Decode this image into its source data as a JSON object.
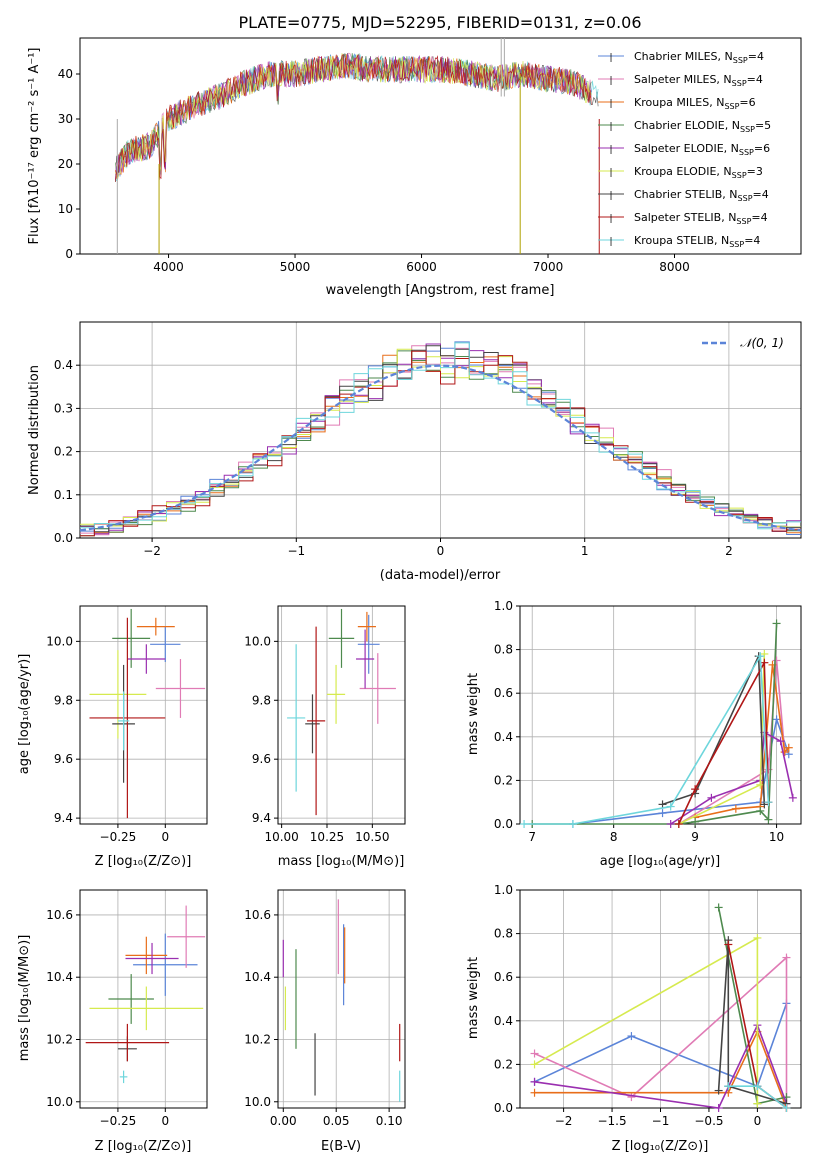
{
  "title": "PLATE=0775, MJD=52295, FIBERID=0131, z=0.06",
  "colors": {
    "Chabrier MILES": "#5b84d8",
    "Salpeter MILES": "#e07bb5",
    "Kroupa MILES": "#e86e1a",
    "Chabrier ELODIE": "#4e8a4e",
    "Salpeter ELODIE": "#9a2fb0",
    "Kroupa ELODIE": "#d6ea4f",
    "Chabrier STELIB": "#444444",
    "Salpeter STELIB": "#b01717",
    "Kroupa STELIB": "#6ed6dc"
  },
  "legend_spectrum": {
    "placement": "upper right",
    "entries": [
      {
        "label": "Chabrier MILES, N",
        "sub": "SSP",
        "suffix": "=4"
      },
      {
        "label": "Salpeter MILES, N",
        "sub": "SSP",
        "suffix": "=4"
      },
      {
        "label": "Kroupa MILES, N",
        "sub": "SSP",
        "suffix": "=6"
      },
      {
        "label": "Chabrier ELODIE, N",
        "sub": "SSP",
        "suffix": "=5"
      },
      {
        "label": "Salpeter ELODIE, N",
        "sub": "SSP",
        "suffix": "=6"
      },
      {
        "label": "Kroupa ELODIE, N",
        "sub": "SSP",
        "suffix": "=3"
      },
      {
        "label": "Chabrier STELIB, N",
        "sub": "SSP",
        "suffix": "=4"
      },
      {
        "label": "Salpeter STELIB, N",
        "sub": "SSP",
        "suffix": "=4"
      },
      {
        "label": "Kroupa STELIB, N",
        "sub": "SSP",
        "suffix": "=4"
      }
    ]
  },
  "legend_hist": {
    "label": "𝒩(0, 1)",
    "placement": "upper right"
  },
  "chart_data": [
    {
      "type": "line",
      "xlabel": "wavelength [Angstrom, rest frame]",
      "ylabel": "Flux [fλ10⁻¹⁷ erg cm⁻² s⁻¹ A⁻¹]",
      "xlim": [
        3300,
        9000
      ],
      "ylim": [
        0,
        48
      ],
      "xticks": [
        4000,
        5000,
        6000,
        7000,
        8000
      ],
      "yticks": [
        0,
        10,
        20,
        30,
        40
      ],
      "continuum": {
        "x": [
          3580,
          3700,
          3850,
          4000,
          4200,
          4400,
          4600,
          4800,
          5000,
          5200,
          5400,
          5600,
          5800,
          6000,
          6200,
          6400,
          6600,
          6800,
          7000,
          7200,
          7400
        ],
        "y": [
          19,
          23,
          24,
          30,
          33,
          35,
          38,
          40,
          40,
          41,
          42,
          41,
          41,
          41,
          41,
          40,
          39,
          40,
          39,
          38,
          35
        ]
      }
    },
    {
      "type": "bar",
      "xlabel": "(data-model)/error",
      "ylabel": "Normed distribution",
      "xlim": [
        -2.5,
        2.5
      ],
      "ylim": [
        0,
        0.5
      ],
      "xticks": [
        -2,
        -1,
        0,
        1,
        2
      ],
      "yticks": [
        0.0,
        0.1,
        0.2,
        0.3,
        0.4
      ],
      "grid": true
    },
    {
      "type": "scatter",
      "xlabel": "Z [log₁₀(Z/Z⊙)]",
      "ylabel": "age  [log₁₀(age/yr)]",
      "xlim": [
        -0.45,
        0.22
      ],
      "ylim": [
        9.38,
        10.12
      ],
      "xticks": [
        -0.25,
        0.0
      ],
      "yticks": [
        9.4,
        9.6,
        9.8,
        10.0
      ],
      "points": [
        {
          "series": "Chabrier MILES",
          "x": 0.0,
          "y": 9.99,
          "xerr": 0.08,
          "yerr": 0.06
        },
        {
          "series": "Salpeter MILES",
          "x": 0.08,
          "y": 9.84,
          "xerr": 0.13,
          "yerr": 0.1
        },
        {
          "series": "Kroupa MILES",
          "x": -0.05,
          "y": 10.05,
          "xerr": 0.1,
          "yerr": 0.03
        },
        {
          "series": "Chabrier ELODIE",
          "x": -0.18,
          "y": 10.01,
          "xerr": 0.1,
          "yerr": 0.1
        },
        {
          "series": "Salpeter ELODIE",
          "x": -0.1,
          "y": 9.94,
          "xerr": 0.1,
          "yerr": 0.05
        },
        {
          "series": "Kroupa ELODIE",
          "x": -0.25,
          "y": 9.82,
          "xerr": 0.15,
          "yerr": 0.15
        },
        {
          "series": "Chabrier STELIB",
          "x": -0.22,
          "y": 9.72,
          "xerr": 0.06,
          "yerr": 0.2
        },
        {
          "series": "Salpeter STELIB",
          "x": -0.2,
          "y": 9.74,
          "xerr": 0.2,
          "yerr": 0.34
        },
        {
          "series": "Kroupa STELIB",
          "x": -0.22,
          "y": 9.73,
          "xerr": 0.03,
          "yerr": 0.1
        }
      ]
    },
    {
      "type": "scatter",
      "xlabel": "mass [log₁₀(M/M⊙)]",
      "ylabel": "",
      "xlim": [
        9.98,
        10.68
      ],
      "ylim": [
        9.38,
        10.12
      ],
      "xticks": [
        10.0,
        10.25,
        10.5
      ],
      "yticks": [
        9.4,
        9.6,
        9.8,
        10.0
      ],
      "points": [
        {
          "series": "Chabrier MILES",
          "x": 10.48,
          "y": 9.99,
          "xerr": 0.06,
          "yerr": 0.1
        },
        {
          "series": "Salpeter MILES",
          "x": 10.53,
          "y": 9.84,
          "xerr": 0.1,
          "yerr": 0.12
        },
        {
          "series": "Kroupa MILES",
          "x": 10.47,
          "y": 10.05,
          "xerr": 0.05,
          "yerr": 0.05
        },
        {
          "series": "Chabrier ELODIE",
          "x": 10.33,
          "y": 10.01,
          "xerr": 0.07,
          "yerr": 0.1
        },
        {
          "series": "Salpeter ELODIE",
          "x": 10.46,
          "y": 9.94,
          "xerr": 0.05,
          "yerr": 0.1
        },
        {
          "series": "Kroupa ELODIE",
          "x": 10.3,
          "y": 9.82,
          "xerr": 0.05,
          "yerr": 0.1
        },
        {
          "series": "Chabrier STELIB",
          "x": 10.17,
          "y": 9.72,
          "xerr": 0.04,
          "yerr": 0.1
        },
        {
          "series": "Salpeter STELIB",
          "x": 10.19,
          "y": 9.73,
          "xerr": 0.05,
          "yerr": 0.32
        },
        {
          "series": "Kroupa STELIB",
          "x": 10.08,
          "y": 9.74,
          "xerr": 0.05,
          "yerr": 0.25
        }
      ]
    },
    {
      "type": "line",
      "xlabel": "age  [log₁₀(age/yr)]",
      "ylabel": "mass weight",
      "xlim": [
        6.85,
        10.3
      ],
      "ylim": [
        0,
        1.0
      ],
      "xticks": [
        7,
        8,
        9,
        10
      ],
      "yticks": [
        0.0,
        0.2,
        0.4,
        0.6,
        0.8,
        1.0
      ],
      "series": [
        {
          "name": "Chabrier MILES",
          "x": [
            7.5,
            8.6,
            9.8,
            10.0,
            10.15
          ],
          "y": [
            0.0,
            0.05,
            0.1,
            0.48,
            0.32
          ]
        },
        {
          "name": "Salpeter MILES",
          "x": [
            8.8,
            9.9,
            10.0,
            10.1
          ],
          "y": [
            0.0,
            0.25,
            0.75,
            0.33
          ]
        },
        {
          "name": "Kroupa MILES",
          "x": [
            9.0,
            9.5,
            9.8,
            9.95,
            10.1,
            10.15
          ],
          "y": [
            0.03,
            0.07,
            0.08,
            0.73,
            0.33,
            0.35
          ]
        },
        {
          "name": "Chabrier ELODIE",
          "x": [
            7.0,
            8.8,
            9.0,
            9.8,
            9.9,
            10.0
          ],
          "y": [
            0.0,
            0.0,
            0.01,
            0.06,
            0.02,
            0.92
          ]
        },
        {
          "name": "Salpeter ELODIE",
          "x": [
            8.7,
            9.2,
            9.8,
            9.85,
            10.05,
            10.2
          ],
          "y": [
            0.0,
            0.12,
            0.2,
            0.42,
            0.38,
            0.12
          ]
        },
        {
          "name": "Kroupa ELODIE",
          "x": [
            8.8,
            9.8,
            9.85
          ],
          "y": [
            0.0,
            0.18,
            0.78
          ]
        },
        {
          "name": "Chabrier STELIB",
          "x": [
            8.6,
            9.0,
            9.78,
            9.85
          ],
          "y": [
            0.09,
            0.14,
            0.77,
            0.09
          ]
        },
        {
          "name": "Salpeter STELIB",
          "x": [
            8.8,
            9.0,
            9.85,
            9.9
          ],
          "y": [
            0.0,
            0.16,
            0.74,
            0.1
          ]
        },
        {
          "name": "Kroupa STELIB",
          "x": [
            6.9,
            7.5,
            8.7,
            9.8,
            9.9
          ],
          "y": [
            0.0,
            0.0,
            0.08,
            0.77,
            0.1
          ]
        }
      ]
    },
    {
      "type": "scatter",
      "xlabel": "Z [log₁₀(Z/Z⊙)]",
      "ylabel": "mass [log₁₀(M/M⊙)]",
      "xlim": [
        -0.45,
        0.22
      ],
      "ylim": [
        9.98,
        10.68
      ],
      "xticks": [
        -0.25,
        0.0
      ],
      "yticks": [
        10.0,
        10.2,
        10.4,
        10.6
      ],
      "points": [
        {
          "series": "Chabrier MILES",
          "x": 0.0,
          "y": 10.44,
          "xerr": 0.17,
          "yerr": 0.1
        },
        {
          "series": "Salpeter MILES",
          "x": 0.11,
          "y": 10.53,
          "xerr": 0.1,
          "yerr": 0.1
        },
        {
          "series": "Kroupa MILES",
          "x": -0.1,
          "y": 10.47,
          "xerr": 0.11,
          "yerr": 0.06
        },
        {
          "series": "Chabrier ELODIE",
          "x": -0.18,
          "y": 10.33,
          "xerr": 0.12,
          "yerr": 0.08
        },
        {
          "series": "Salpeter ELODIE",
          "x": -0.07,
          "y": 10.46,
          "xerr": 0.14,
          "yerr": 0.05
        },
        {
          "series": "Kroupa ELODIE",
          "x": -0.1,
          "y": 10.3,
          "xerr": 0.3,
          "yerr": 0.07
        },
        {
          "series": "Chabrier STELIB",
          "x": -0.2,
          "y": 10.17,
          "xerr": 0.05,
          "yerr": 0.04
        },
        {
          "series": "Salpeter STELIB",
          "x": -0.2,
          "y": 10.19,
          "xerr": 0.22,
          "yerr": 0.06
        },
        {
          "series": "Kroupa STELIB",
          "x": -0.22,
          "y": 10.08,
          "xerr": 0.02,
          "yerr": 0.02
        }
      ]
    },
    {
      "type": "scatter",
      "xlabel": "E(B-V)",
      "ylabel": "",
      "xlim": [
        -0.005,
        0.115
      ],
      "ylim": [
        9.98,
        10.68
      ],
      "xticks": [
        0.0,
        0.05,
        0.1
      ],
      "yticks": [
        10.0,
        10.2,
        10.4,
        10.6
      ],
      "points": [
        {
          "series": "Chabrier MILES",
          "x": 0.057,
          "y": 10.44,
          "xerr": 0,
          "yerr": 0.13
        },
        {
          "series": "Salpeter MILES",
          "x": 0.052,
          "y": 10.53,
          "xerr": 0,
          "yerr": 0.12
        },
        {
          "series": "Kroupa MILES",
          "x": 0.058,
          "y": 10.47,
          "xerr": 0,
          "yerr": 0.09
        },
        {
          "series": "Chabrier ELODIE",
          "x": 0.012,
          "y": 10.33,
          "xerr": 0,
          "yerr": 0.16
        },
        {
          "series": "Salpeter ELODIE",
          "x": 0.0,
          "y": 10.46,
          "xerr": 0,
          "yerr": 0.06
        },
        {
          "series": "Kroupa ELODIE",
          "x": 0.002,
          "y": 10.3,
          "xerr": 0,
          "yerr": 0.07
        },
        {
          "series": "Chabrier STELIB",
          "x": 0.03,
          "y": 10.12,
          "xerr": 0,
          "yerr": 0.1
        },
        {
          "series": "Salpeter STELIB",
          "x": 0.11,
          "y": 10.19,
          "xerr": 0,
          "yerr": 0.06
        },
        {
          "series": "Kroupa STELIB",
          "x": 0.11,
          "y": 10.05,
          "xerr": 0,
          "yerr": 0.05
        }
      ]
    },
    {
      "type": "line",
      "xlabel": "Z [log₁₀(Z/Z⊙)]",
      "ylabel": "mass weight",
      "xlim": [
        -2.45,
        0.45
      ],
      "ylim": [
        0,
        1.0
      ],
      "xticks": [
        -2.0,
        -1.5,
        -1.0,
        -0.5,
        0.0
      ],
      "yticks": [
        0.0,
        0.2,
        0.4,
        0.6,
        0.8,
        1.0
      ],
      "series": [
        {
          "name": "Chabrier MILES",
          "x": [
            -2.3,
            -1.3,
            0.0,
            0.3
          ],
          "y": [
            0.12,
            0.33,
            0.1,
            0.48
          ]
        },
        {
          "name": "Salpeter MILES",
          "x": [
            -2.3,
            -1.3,
            0.3,
            0.3
          ],
          "y": [
            0.25,
            0.05,
            0.69,
            0.0
          ]
        },
        {
          "name": "Kroupa MILES",
          "x": [
            -2.3,
            -0.3,
            0.0,
            0.3
          ],
          "y": [
            0.07,
            0.07,
            0.35,
            0.0
          ]
        },
        {
          "name": "Chabrier ELODIE",
          "x": [
            -0.4,
            0.0,
            0.3
          ],
          "y": [
            0.92,
            0.02,
            0.05
          ]
        },
        {
          "name": "Salpeter ELODIE",
          "x": [
            -2.3,
            -0.4,
            0.0,
            0.3
          ],
          "y": [
            0.12,
            0.0,
            0.38,
            0.02
          ]
        },
        {
          "name": "Kroupa ELODIE",
          "x": [
            -2.3,
            0.0,
            0.0
          ],
          "y": [
            0.2,
            0.78,
            0.02
          ]
        },
        {
          "name": "Chabrier STELIB",
          "x": [
            -0.4,
            -0.3,
            -0.3,
            0.3
          ],
          "y": [
            0.08,
            0.77,
            0.1,
            0.02
          ]
        },
        {
          "name": "Salpeter STELIB",
          "x": [
            -0.3,
            0.0,
            0.3
          ],
          "y": [
            0.75,
            0.1,
            0.0
          ]
        },
        {
          "name": "Kroupa STELIB",
          "x": [
            -0.3,
            0.0,
            0.3
          ],
          "y": [
            0.1,
            0.1,
            0.0
          ]
        }
      ]
    }
  ]
}
